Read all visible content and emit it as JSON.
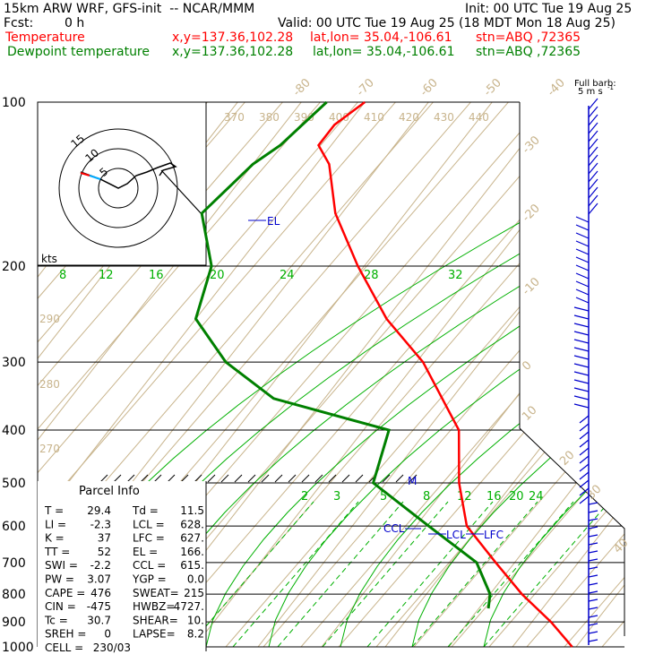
{
  "header": {
    "model": "15km ARW WRF, GFS-init  -- NCAR/MMM",
    "init": "Init: 00 UTC Tue 19 Aug 25",
    "fcst_label": "Fcst:",
    "fcst_value": "0 h",
    "valid": "Valid: 00 UTC Tue 19 Aug 25 (18 MDT Mon 18 Aug 25)",
    "temp_line": {
      "name": "Temperature",
      "xy": "x,y=137.36,102.28",
      "latlon": "lat,lon= 35.04,-106.61",
      "stn": "stn=ABQ ,72365"
    },
    "dew_line": {
      "name": "Dewpoint temperature",
      "xy": "x,y=137.36,102.28",
      "latlon": "lat,lon= 35.04,-106.61",
      "stn": "stn=ABQ ,72365"
    }
  },
  "colors": {
    "temperature": "#ff0000",
    "dewpoint": "#008000",
    "isotherm": "#c8b48c",
    "dry_adiabat": "#c8b48c",
    "moist_adiabat": "#00b000",
    "mixing_ratio": "#00b000",
    "isobar": "#000000",
    "parcel_marks": "#0000cc",
    "barbs": "#0000cc"
  },
  "barb_legend": {
    "title": "Full barb:",
    "value": "5 m s",
    "sup": "-1"
  },
  "hodograph": {
    "unit": "kts",
    "ring_labels": [
      "15",
      "10",
      "5"
    ]
  },
  "chart_data": {
    "type": "skew-t",
    "pressure_levels": [
      "100",
      "200",
      "300",
      "400",
      "500",
      "600",
      "700",
      "800",
      "900",
      "1000"
    ],
    "isotherm_labels": [
      "-80",
      "-70",
      "-60",
      "-50",
      "-40",
      "-30",
      "-20",
      "-10",
      "0",
      "10",
      "20",
      "30",
      "40"
    ],
    "theta_labels_top": [
      "370",
      "380",
      "390",
      "400",
      "410",
      "420",
      "430",
      "440"
    ],
    "theta_labels_left": [
      "290",
      "280",
      "270"
    ],
    "moist_labels": [
      "8",
      "12",
      "16",
      "20",
      "24",
      "28",
      "32"
    ],
    "mixing_ratio_labels": [
      "2",
      "3",
      "5",
      "8",
      "12",
      "16",
      "20",
      "24"
    ],
    "series": [
      {
        "name": "Temperature",
        "points": [
          [
            1,
            29.4
          ],
          [
            0.9,
            23
          ],
          [
            0.8,
            15
          ],
          [
            0.7,
            7
          ],
          [
            0.6,
            -2
          ],
          [
            0.5,
            -8.5
          ],
          [
            0.4,
            -15
          ],
          [
            0.3,
            -29
          ],
          [
            0.25,
            -40
          ],
          [
            0.2,
            -51
          ],
          [
            0.16,
            -61
          ],
          [
            0.13,
            -68
          ],
          [
            0.12,
            -72
          ],
          [
            0.11,
            -72
          ],
          [
            0.1,
            -70
          ]
        ]
      },
      {
        "name": "Dewpoint temperature",
        "points": [
          [
            0.85,
            11.5
          ],
          [
            0.8,
            10
          ],
          [
            0.7,
            4
          ],
          [
            0.6,
            -8
          ],
          [
            0.5,
            -22
          ],
          [
            0.4,
            -26
          ],
          [
            0.35,
            -48
          ],
          [
            0.3,
            -60
          ],
          [
            0.25,
            -70
          ],
          [
            0.2,
            -74
          ],
          [
            0.16,
            -82
          ],
          [
            0.13,
            -80
          ],
          [
            0.12,
            -78
          ],
          [
            0.1,
            -76
          ]
        ]
      }
    ],
    "parcel_markers": [
      "EL",
      "M",
      "CCL",
      "LCL",
      "LFC"
    ]
  },
  "parcel_info": {
    "title": "Parcel Info",
    "rows": [
      [
        "T  =",
        "29.4",
        "Td =",
        "11.5"
      ],
      [
        "LI =",
        "-2.3",
        "LCL =",
        "628."
      ],
      [
        "K  =",
        "37",
        "LFC =",
        "627."
      ],
      [
        "TT =",
        "52",
        "EL  =",
        "166."
      ],
      [
        "SWI =",
        "-2.2",
        "CCL =",
        "615."
      ],
      [
        "PW =",
        "3.07",
        "YGP =",
        "0.0"
      ],
      [
        "CAPE =",
        "476",
        "SWEAT=",
        "215"
      ],
      [
        "CIN =",
        "-475",
        "HWBZ=",
        "4727."
      ],
      [
        "Tc =",
        "30.7",
        "SHEAR=",
        "10."
      ],
      [
        "SREH =",
        "0",
        "LAPSE=",
        "8.2"
      ],
      [
        "CELL =",
        "230/03",
        "",
        ""
      ]
    ]
  }
}
